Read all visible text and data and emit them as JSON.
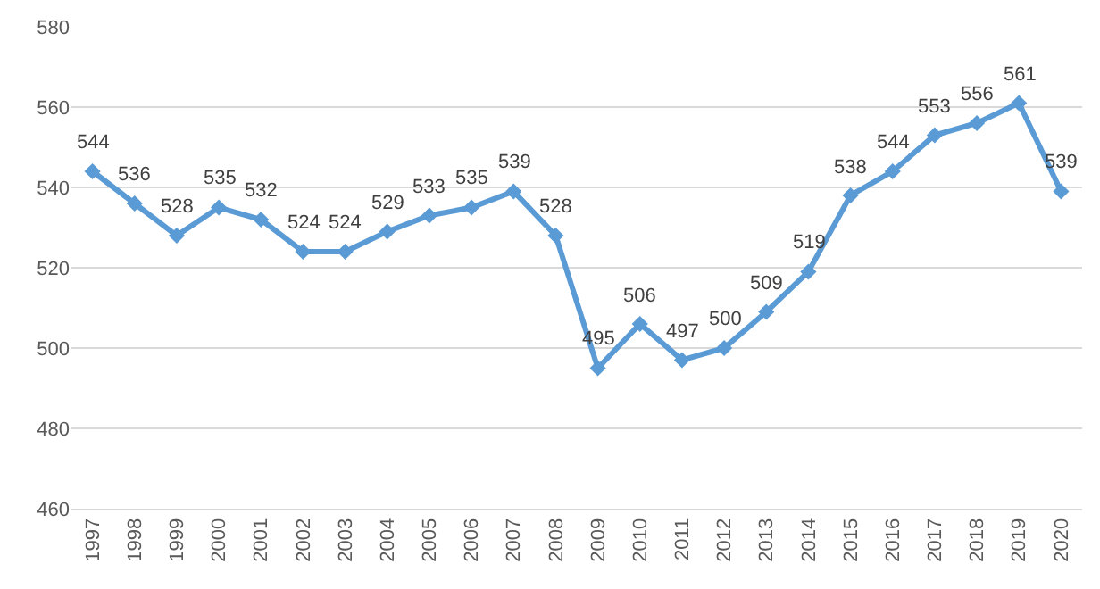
{
  "chart_data": {
    "type": "line",
    "categories": [
      "1997",
      "1998",
      "1999",
      "2000",
      "2001",
      "2002",
      "2003",
      "2004",
      "2005",
      "2006",
      "2007",
      "2008",
      "2009",
      "2010",
      "2011",
      "2012",
      "2013",
      "2014",
      "2015",
      "2016",
      "2017",
      "2018",
      "2019",
      "2020"
    ],
    "series": [
      {
        "color": "#5b9bd5",
        "values": [
          544,
          536,
          528,
          535,
          532,
          524,
          524,
          529,
          533,
          535,
          539,
          528,
          495,
          506,
          497,
          500,
          509,
          519,
          538,
          544,
          553,
          556,
          561,
          539
        ]
      }
    ],
    "ylim": [
      460,
      580
    ],
    "yticks": [
      460,
      480,
      500,
      520,
      540,
      560,
      580
    ],
    "grid": "y",
    "marker": "diamond",
    "line_style": "solid",
    "data_labels": true
  }
}
